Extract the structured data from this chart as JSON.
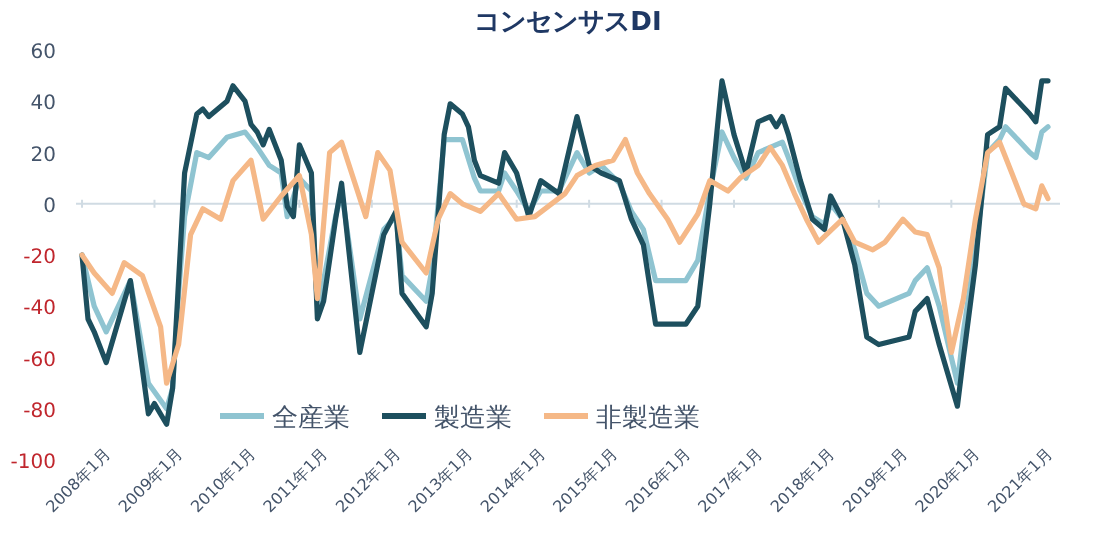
{
  "chart_data": {
    "type": "line",
    "title": "コンセンサスDI",
    "xlim": [
      "2007-12",
      "2021-07"
    ],
    "xticks": [
      {
        "value": "2008-01",
        "label": "2008年1月"
      },
      {
        "value": "2009-01",
        "label": "2009年1月"
      },
      {
        "value": "2010-01",
        "label": "2010年1月"
      },
      {
        "value": "2011-01",
        "label": "2011年1月"
      },
      {
        "value": "2012-01",
        "label": "2012年1月"
      },
      {
        "value": "2013-01",
        "label": "2013年1月"
      },
      {
        "value": "2014-01",
        "label": "2014年1月"
      },
      {
        "value": "2015-01",
        "label": "2015年1月"
      },
      {
        "value": "2016-01",
        "label": "2016年1月"
      },
      {
        "value": "2017-01",
        "label": "2017年1月"
      },
      {
        "value": "2018-01",
        "label": "2018年1月"
      },
      {
        "value": "2019-01",
        "label": "2019年1月"
      },
      {
        "value": "2020-01",
        "label": "2020年1月"
      },
      {
        "value": "2021-01",
        "label": "2021年1月"
      }
    ],
    "ylim": [
      -100,
      60
    ],
    "yticks": [
      -100,
      -80,
      -60,
      -40,
      -20,
      0,
      20,
      40,
      60
    ],
    "legend": "bottom left",
    "line_style": "solid",
    "marker": "none",
    "series": [
      {
        "name": "全産業",
        "color": "#8fc4d1",
        "x": [
          "2008-01",
          "2008-03",
          "2008-05",
          "2008-09",
          "2008-12",
          "2009-03",
          "2009-04",
          "2009-05",
          "2009-06",
          "2009-08",
          "2009-10",
          "2010-01",
          "2010-04",
          "2010-06",
          "2010-08",
          "2010-10",
          "2010-11",
          "2011-01",
          "2011-03",
          "2011-04",
          "2011-05",
          "2011-07",
          "2011-08",
          "2011-11",
          "2012-03",
          "2012-05",
          "2012-06",
          "2012-10",
          "2012-11",
          "2013-01",
          "2013-02",
          "2013-04",
          "2013-06",
          "2013-07",
          "2013-10",
          "2013-11",
          "2014-01",
          "2014-03",
          "2014-05",
          "2014-08",
          "2014-11",
          "2015-01",
          "2015-03",
          "2015-06",
          "2015-08",
          "2015-10",
          "2015-12",
          "2016-05",
          "2016-07",
          "2016-09",
          "2016-11",
          "2017-01",
          "2017-03",
          "2017-05",
          "2017-07",
          "2017-09",
          "2017-10",
          "2017-12",
          "2018-02",
          "2018-04",
          "2018-05",
          "2018-07",
          "2018-09",
          "2018-11",
          "2019-01",
          "2019-06",
          "2019-07",
          "2019-09",
          "2019-11",
          "2020-02",
          "2020-03",
          "2020-05",
          "2020-07",
          "2020-09",
          "2020-10",
          "2020-12",
          "2021-02",
          "2021-03",
          "2021-04",
          "2021-05"
        ],
        "values": [
          -20,
          -40,
          -50,
          -30,
          -70,
          -80,
          -72,
          -35,
          -5,
          20,
          18,
          26,
          28,
          22,
          15,
          12,
          -5,
          10,
          5,
          -40,
          -30,
          -5,
          5,
          -45,
          -10,
          -5,
          -28,
          -38,
          -25,
          25,
          25,
          25,
          10,
          5,
          5,
          12,
          5,
          -3,
          5,
          5,
          20,
          12,
          15,
          8,
          -3,
          -10,
          -30,
          -30,
          -22,
          5,
          28,
          18,
          10,
          20,
          22,
          24,
          18,
          5,
          -5,
          -8,
          0,
          -6,
          -18,
          -35,
          -40,
          -35,
          -30,
          -25,
          -40,
          -70,
          -50,
          -18,
          20,
          25,
          30,
          25,
          20,
          18,
          28,
          30
        ]
      },
      {
        "name": "製造業",
        "color": "#1d4f5e",
        "x": [
          "2008-01",
          "2008-02",
          "2008-03",
          "2008-05",
          "2008-08",
          "2008-09",
          "2008-12",
          "2009-01",
          "2009-03",
          "2009-04",
          "2009-05",
          "2009-06",
          "2009-08",
          "2009-09",
          "2009-10",
          "2010-01",
          "2010-02",
          "2010-04",
          "2010-05",
          "2010-06",
          "2010-07",
          "2010-08",
          "2010-10",
          "2010-11",
          "2010-12",
          "2011-01",
          "2011-03",
          "2011-04",
          "2011-05",
          "2011-07",
          "2011-08",
          "2011-11",
          "2012-03",
          "2012-05",
          "2012-06",
          "2012-10",
          "2012-11",
          "2013-01",
          "2013-02",
          "2013-04",
          "2013-05",
          "2013-06",
          "2013-07",
          "2013-10",
          "2013-11",
          "2014-01",
          "2014-03",
          "2014-05",
          "2014-08",
          "2014-11",
          "2015-01",
          "2015-03",
          "2015-06",
          "2015-08",
          "2015-10",
          "2015-12",
          "2016-05",
          "2016-07",
          "2016-09",
          "2016-11",
          "2017-01",
          "2017-03",
          "2017-05",
          "2017-07",
          "2017-08",
          "2017-09",
          "2017-10",
          "2017-12",
          "2018-02",
          "2018-04",
          "2018-05",
          "2018-07",
          "2018-09",
          "2018-11",
          "2019-01",
          "2019-06",
          "2019-07",
          "2019-09",
          "2019-11",
          "2020-02",
          "2020-03",
          "2020-05",
          "2020-07",
          "2020-09",
          "2020-10",
          "2020-12",
          "2021-02",
          "2021-03",
          "2021-04",
          "2021-05"
        ],
        "values": [
          -20,
          -45,
          -50,
          -62,
          -38,
          -30,
          -82,
          -78,
          -86,
          -72,
          -30,
          12,
          35,
          37,
          34,
          40,
          46,
          40,
          31,
          28,
          23,
          29,
          17,
          -1,
          -5,
          23,
          12,
          -45,
          -38,
          -6,
          8,
          -58,
          -12,
          -3,
          -35,
          -48,
          -35,
          27,
          39,
          35,
          30,
          17,
          11,
          8,
          20,
          12,
          -5,
          9,
          4,
          34,
          15,
          12,
          9,
          -6,
          -16,
          -47,
          -47,
          -40,
          0,
          48,
          27,
          12,
          32,
          34,
          30,
          34,
          27,
          9,
          -6,
          -10,
          3,
          -6,
          -24,
          -52,
          -55,
          -52,
          -42,
          -37,
          -55,
          -79,
          -60,
          -24,
          27,
          30,
          45,
          40,
          35,
          32,
          48,
          48
        ]
      },
      {
        "name": "非製造業",
        "color": "#f5b887",
        "x": [
          "2008-01",
          "2008-03",
          "2008-06",
          "2008-08",
          "2008-11",
          "2009-02",
          "2009-03",
          "2009-05",
          "2009-07",
          "2009-09",
          "2009-12",
          "2010-02",
          "2010-05",
          "2010-07",
          "2010-10",
          "2011-01",
          "2011-03",
          "2011-04",
          "2011-06",
          "2011-08",
          "2011-12",
          "2012-02",
          "2012-04",
          "2012-06",
          "2012-10",
          "2012-12",
          "2013-02",
          "2013-04",
          "2013-07",
          "2013-10",
          "2014-01",
          "2014-04",
          "2014-09",
          "2014-11",
          "2015-02",
          "2015-05",
          "2015-07",
          "2015-09",
          "2015-11",
          "2016-02",
          "2016-04",
          "2016-07",
          "2016-09",
          "2016-12",
          "2017-02",
          "2017-05",
          "2017-07",
          "2017-09",
          "2017-11",
          "2018-01",
          "2018-03",
          "2018-07",
          "2018-09",
          "2018-12",
          "2019-02",
          "2019-05",
          "2019-07",
          "2019-09",
          "2019-11",
          "2020-01",
          "2020-03",
          "2020-05",
          "2020-07",
          "2020-09",
          "2020-11",
          "2021-01",
          "2021-03",
          "2021-04",
          "2021-05"
        ],
        "values": [
          -20,
          -27,
          -35,
          -23,
          -28,
          -48,
          -70,
          -55,
          -12,
          -2,
          -6,
          9,
          17,
          -6,
          3,
          11,
          -12,
          -37,
          20,
          24,
          -5,
          20,
          13,
          -15,
          -27,
          -6,
          4,
          0,
          -3,
          4,
          -6,
          -5,
          4,
          11,
          15,
          17,
          25,
          12,
          4,
          -6,
          -15,
          -4,
          9,
          5,
          10,
          15,
          22,
          15,
          4,
          -6,
          -15,
          -6,
          -15,
          -18,
          -15,
          -6,
          -11,
          -12,
          -25,
          -58,
          -37,
          -6,
          20,
          24,
          12,
          0,
          -2,
          7,
          2
        ]
      }
    ]
  }
}
